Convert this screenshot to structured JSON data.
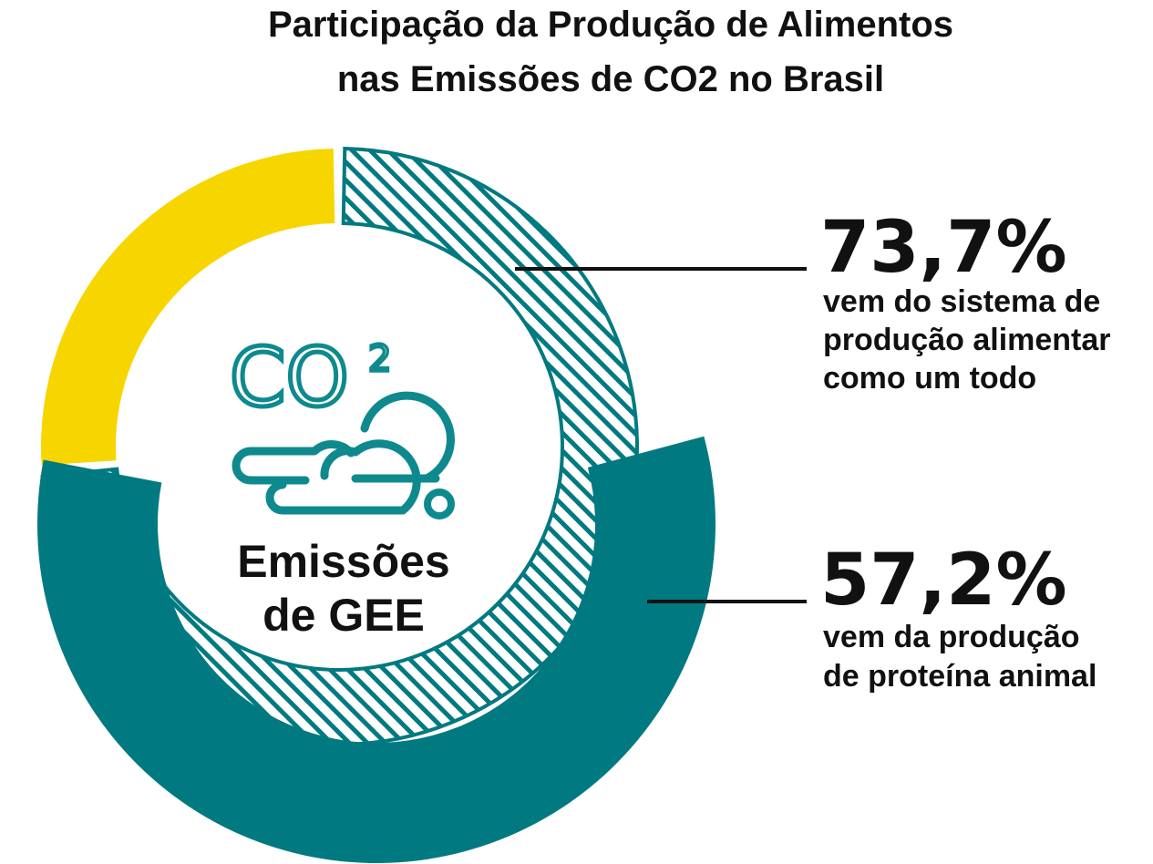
{
  "chart_data": {
    "type": "pie",
    "title_lines": [
      "Participação da Produção de Alimentos",
      "nas Emissões de CO2 no Brasil"
    ],
    "center": {
      "icon": "co2-cloud-icon",
      "co2_text": "CO",
      "co2_superscript": "2",
      "label_lines": [
        "Emissões",
        "de GEE"
      ]
    },
    "outer_ring": {
      "slices": [
        {
          "value": 73.7,
          "pattern": "hatched",
          "color": "#007a80"
        },
        {
          "value": 26.3,
          "color": "#f7d600"
        }
      ]
    },
    "inner_ring": {
      "slices": [
        {
          "value": 57.2,
          "color": "#007a80"
        }
      ]
    },
    "annotations": [
      {
        "value": "73,7%",
        "text_lines": [
          "vem do sistema de",
          "produção alimentar",
          "como um todo"
        ]
      },
      {
        "value": "57,2%",
        "text_lines": [
          "vem da produção",
          "de proteína animal"
        ]
      }
    ],
    "colors": {
      "teal": "#007a80",
      "yellow": "#f7d600",
      "icon": "#0e8a8e"
    }
  }
}
